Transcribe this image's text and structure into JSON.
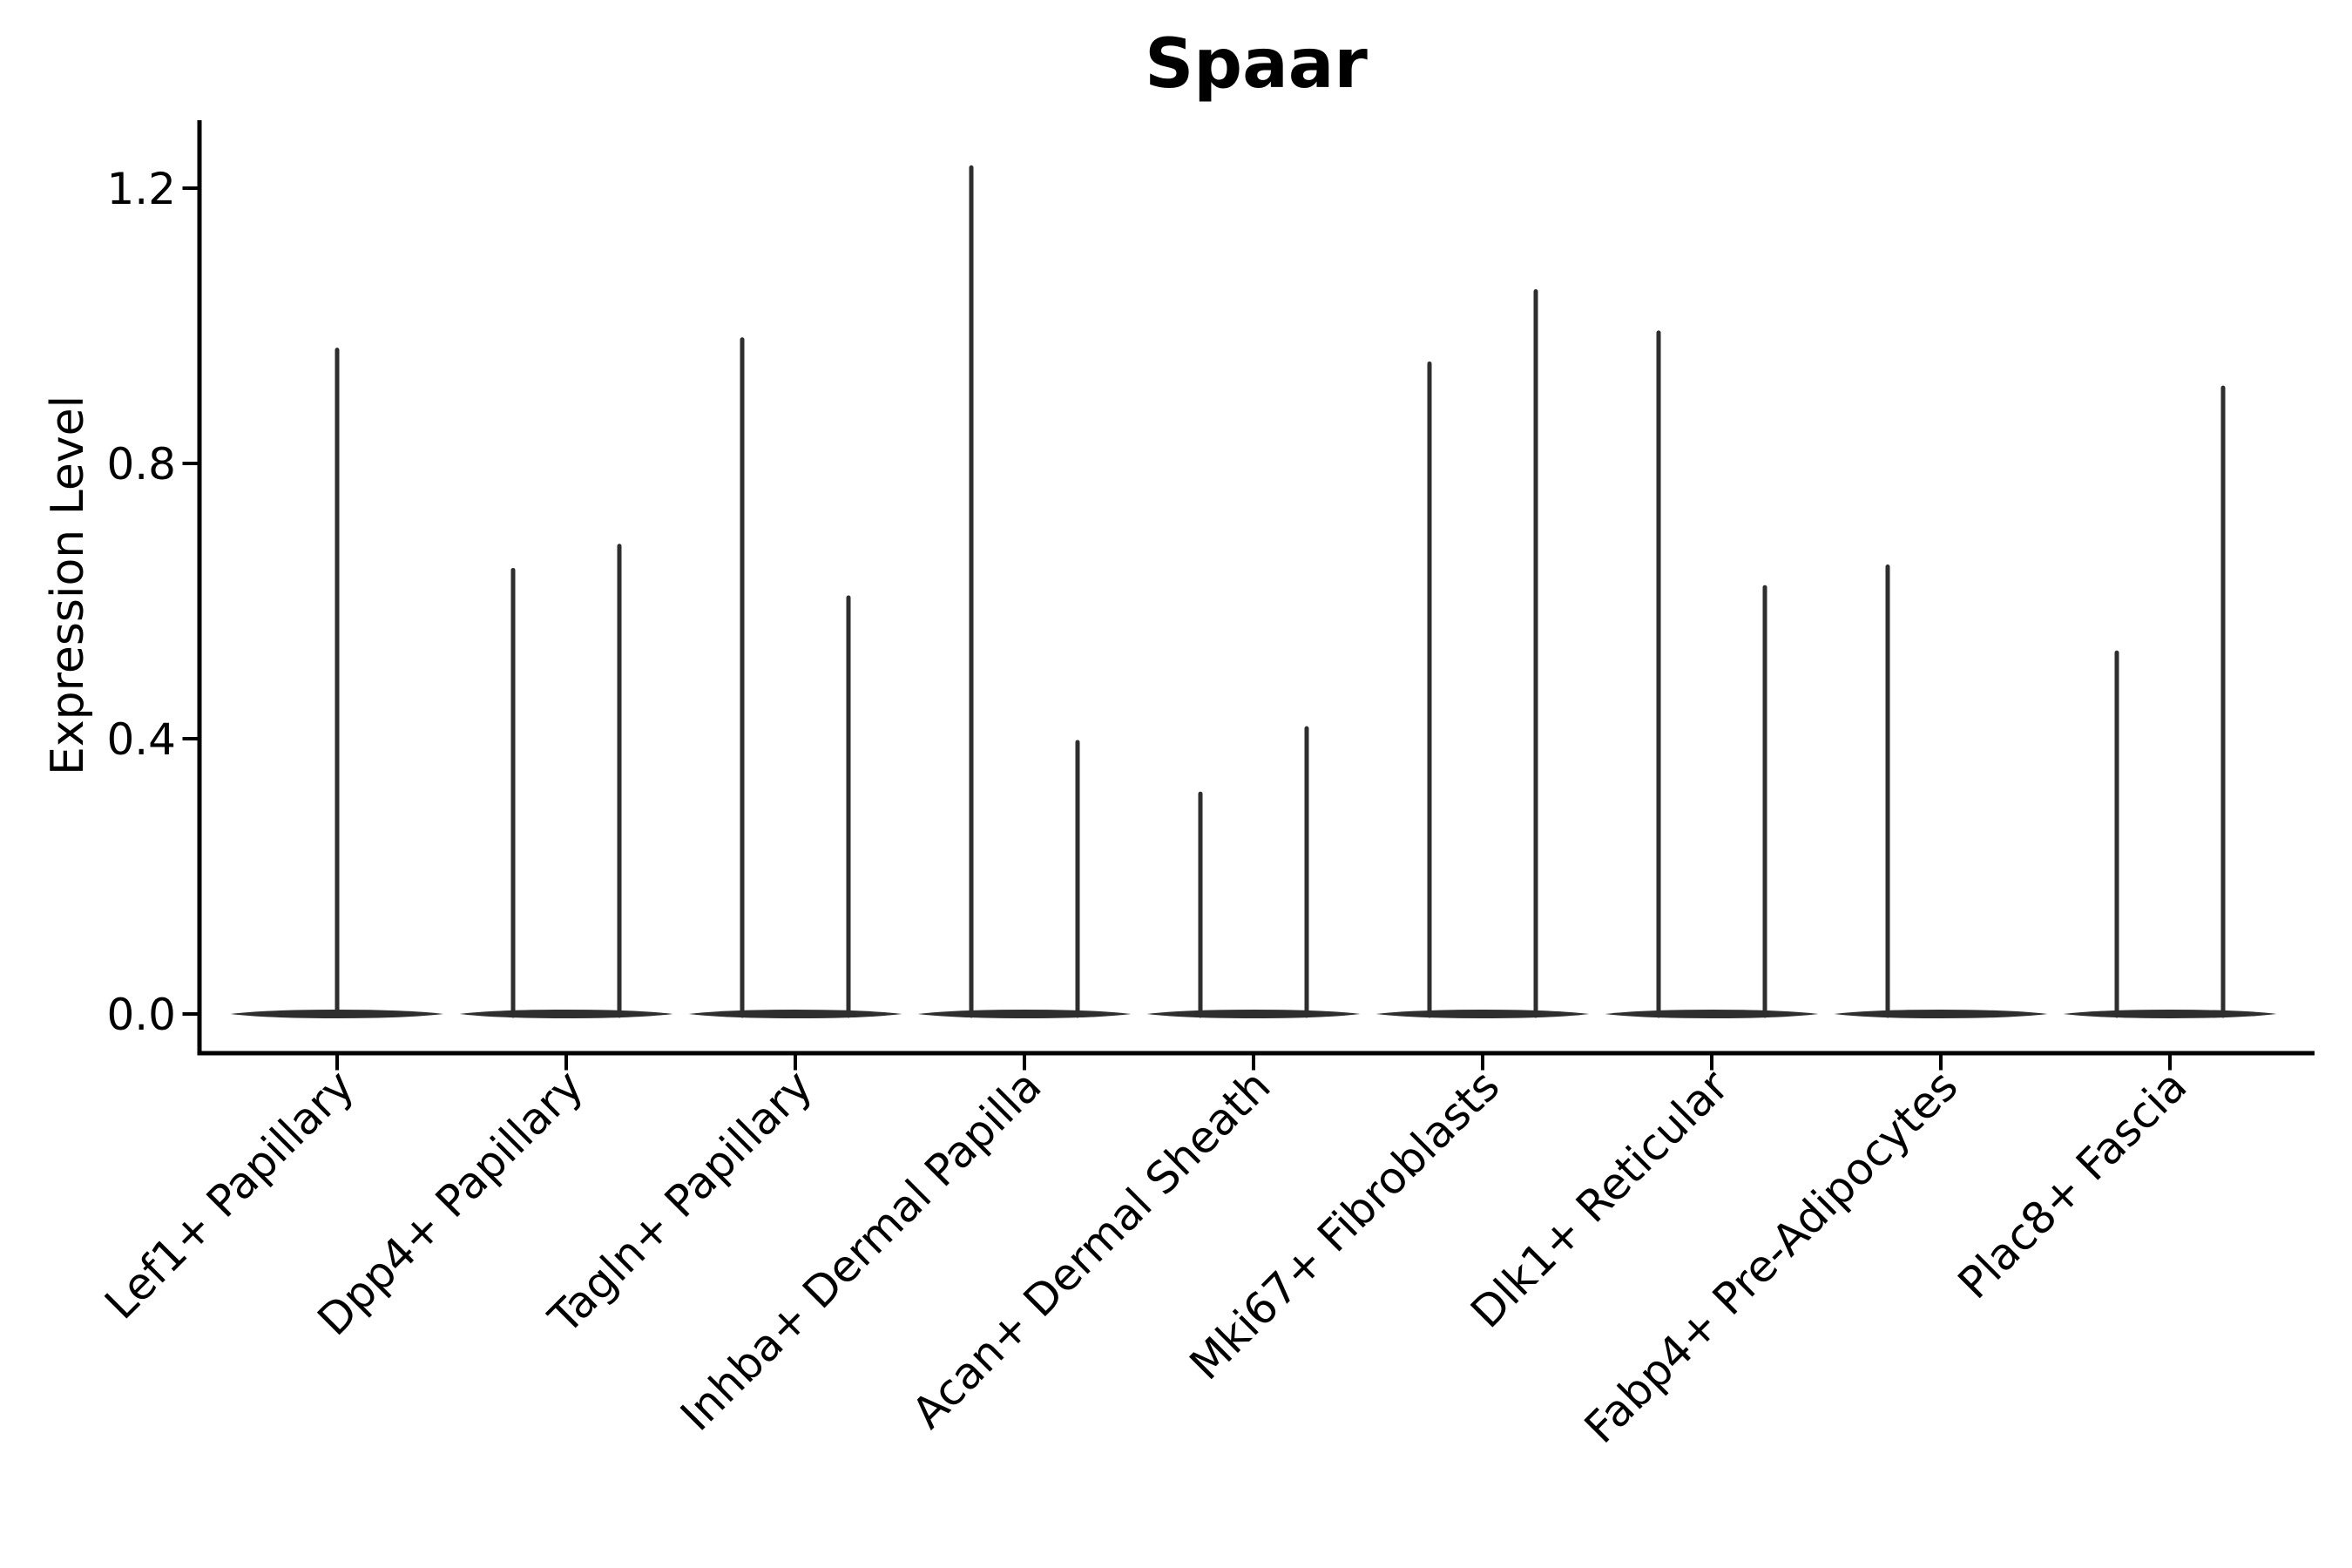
{
  "chart_data": {
    "type": "violin",
    "title": "Spaar",
    "ylabel": "Expression Level",
    "xlabel": "",
    "grid": false,
    "legend": null,
    "ylim": [
      -0.06,
      1.3
    ],
    "yticks": [
      {
        "label": "0.0",
        "value": 0.0
      },
      {
        "label": "0.4",
        "value": 0.4
      },
      {
        "label": "0.8",
        "value": 0.8
      },
      {
        "label": "1.2",
        "value": 1.2
      }
    ],
    "violin_color": "#2e2e2e",
    "axis_color": "#000000",
    "categories": [
      {
        "label": "Lef1+ Papillary",
        "spikes": [
          {
            "position": "center",
            "max": 0.965
          }
        ]
      },
      {
        "label": "Dpp4+ Papillary",
        "spikes": [
          {
            "position": "left",
            "max": 0.645
          },
          {
            "position": "right",
            "max": 0.68
          }
        ]
      },
      {
        "label": "Tagln+ Papillary",
        "spikes": [
          {
            "position": "left",
            "max": 0.98
          },
          {
            "position": "right",
            "max": 0.605
          }
        ]
      },
      {
        "label": "Inhba+ Dermal Papilla",
        "spikes": [
          {
            "position": "left",
            "max": 1.23
          },
          {
            "position": "right",
            "max": 0.395
          }
        ]
      },
      {
        "label": "Acan+ Dermal Sheath",
        "spikes": [
          {
            "position": "left",
            "max": 0.32
          },
          {
            "position": "right",
            "max": 0.415
          }
        ]
      },
      {
        "label": "Mki67+ Fibroblasts",
        "spikes": [
          {
            "position": "left",
            "max": 0.945
          },
          {
            "position": "right",
            "max": 1.05
          }
        ]
      },
      {
        "label": "Dlk1+ Reticular",
        "spikes": [
          {
            "position": "left",
            "max": 0.99
          },
          {
            "position": "right",
            "max": 0.62
          }
        ]
      },
      {
        "label": "Fabp4+ Pre-Adipocytes",
        "spikes": [
          {
            "position": "left",
            "max": 0.65
          }
        ]
      },
      {
        "label": "Plac8+ Fascia",
        "spikes": [
          {
            "position": "left",
            "max": 0.525
          },
          {
            "position": "right",
            "max": 0.91
          }
        ]
      }
    ]
  }
}
